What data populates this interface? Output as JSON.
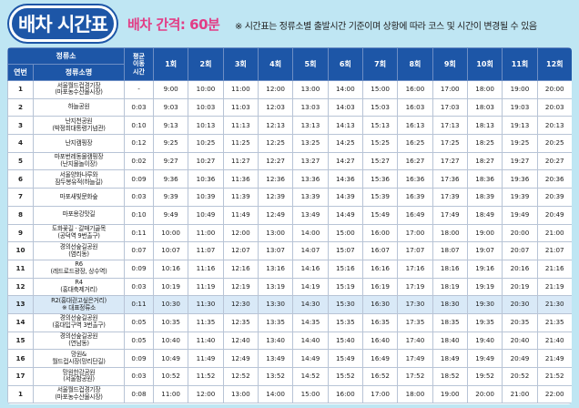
{
  "header": {
    "title": "배차 시간표",
    "interval": "배차 간격: 60분",
    "note": "※ 시간표는 정류소별 출발시간 기준이며 상황에 따라 코스 및 시간이 변경될 수 있음"
  },
  "table": {
    "col_stop_group": "정류소",
    "col_no": "연번",
    "col_stop_name": "정류소명",
    "col_interval": "평균\n이동\n시간",
    "runs": [
      "1회",
      "2회",
      "3회",
      "4회",
      "5회",
      "6회",
      "7회",
      "8회",
      "9회",
      "10회",
      "11회",
      "12회"
    ],
    "rows": [
      {
        "no": "1",
        "stop": "서울월드컵경기장\n(마포농수산물시장)",
        "iv": "-",
        "times": [
          "9:00",
          "10:00",
          "11:00",
          "12:00",
          "13:00",
          "14:00",
          "15:00",
          "16:00",
          "17:00",
          "18:00",
          "19:00",
          "20:00"
        ]
      },
      {
        "no": "2",
        "stop": "하늘공원",
        "iv": "0:03",
        "times": [
          "9:03",
          "10:03",
          "11:03",
          "12:03",
          "13:03",
          "14:03",
          "15:03",
          "16:03",
          "17:03",
          "18:03",
          "19:03",
          "20:03"
        ]
      },
      {
        "no": "3",
        "stop": "난지천공원\n(박정희대통령기념관)",
        "iv": "0:10",
        "times": [
          "9:13",
          "10:13",
          "11:13",
          "12:13",
          "13:13",
          "14:13",
          "15:13",
          "16:13",
          "17:13",
          "18:13",
          "19:13",
          "20:13"
        ]
      },
      {
        "no": "4",
        "stop": "난지캠핑장",
        "iv": "0:12",
        "times": [
          "9:25",
          "10:25",
          "11:25",
          "12:25",
          "13:25",
          "14:25",
          "15:25",
          "16:25",
          "17:25",
          "18:25",
          "19:25",
          "20:25"
        ]
      },
      {
        "no": "5",
        "stop": "마포번레동물캠핑장\n(난지물놀이장)",
        "iv": "0:02",
        "times": [
          "9:27",
          "10:27",
          "11:27",
          "12:27",
          "13:27",
          "14:27",
          "15:27",
          "16:27",
          "17:27",
          "18:27",
          "19:27",
          "20:27"
        ]
      },
      {
        "no": "6",
        "stop": "서울양화나루와\n잠두봉유적(하늘길)",
        "iv": "0:09",
        "times": [
          "9:36",
          "10:36",
          "11:36",
          "12:36",
          "13:36",
          "14:36",
          "15:36",
          "16:36",
          "17:36",
          "18:36",
          "19:36",
          "20:36"
        ]
      },
      {
        "no": "7",
        "stop": "마포새빛문화숲",
        "iv": "0:03",
        "times": [
          "9:39",
          "10:39",
          "11:39",
          "12:39",
          "13:39",
          "14:39",
          "15:39",
          "16:39",
          "17:39",
          "18:39",
          "19:39",
          "20:39"
        ]
      },
      {
        "no": "8",
        "stop": "마포용강맛길",
        "iv": "0:10",
        "times": [
          "9:49",
          "10:49",
          "11:49",
          "12:49",
          "13:49",
          "14:49",
          "15:49",
          "16:49",
          "17:49",
          "18:49",
          "19:49",
          "20:49"
        ]
      },
      {
        "no": "9",
        "stop": "도화꽃길 · 갈매기골목\n(공덕역 9번출구)",
        "iv": "0:11",
        "times": [
          "10:00",
          "11:00",
          "12:00",
          "13:00",
          "14:00",
          "15:00",
          "16:00",
          "17:00",
          "18:00",
          "19:00",
          "20:00",
          "21:00"
        ]
      },
      {
        "no": "10",
        "stop": "경의선숲길공원\n(염리동)",
        "iv": "0:07",
        "times": [
          "10:07",
          "11:07",
          "12:07",
          "13:07",
          "14:07",
          "15:07",
          "16:07",
          "17:07",
          "18:07",
          "19:07",
          "20:07",
          "21:07"
        ]
      },
      {
        "no": "11",
        "stop": "R6\n(레드로드광장, 상수역)",
        "iv": "0:09",
        "times": [
          "10:16",
          "11:16",
          "12:16",
          "13:16",
          "14:16",
          "15:16",
          "16:16",
          "17:16",
          "18:16",
          "19:16",
          "20:16",
          "21:16"
        ]
      },
      {
        "no": "12",
        "stop": "R4\n(홍대축제거리)",
        "iv": "0:03",
        "times": [
          "10:19",
          "11:19",
          "12:19",
          "13:19",
          "14:19",
          "15:19",
          "16:19",
          "17:19",
          "18:19",
          "19:19",
          "20:19",
          "21:19"
        ]
      },
      {
        "no": "13",
        "stop": "R2(홍대걷고싶은거리)\n※ 대표정류소",
        "iv": "0:11",
        "times": [
          "10:30",
          "11:30",
          "12:30",
          "13:30",
          "14:30",
          "15:30",
          "16:30",
          "17:30",
          "18:30",
          "19:30",
          "20:30",
          "21:30"
        ]
      },
      {
        "no": "14",
        "stop": "경의선숲길공원\n(홍대입구역 3번출구)",
        "iv": "0:05",
        "times": [
          "10:35",
          "11:35",
          "12:35",
          "13:35",
          "14:35",
          "15:35",
          "16:35",
          "17:35",
          "18:35",
          "19:35",
          "20:35",
          "21:35"
        ]
      },
      {
        "no": "15",
        "stop": "경의선숲길공원\n(연남동)",
        "iv": "0:05",
        "times": [
          "10:40",
          "11:40",
          "12:40",
          "13:40",
          "14:40",
          "15:40",
          "16:40",
          "17:40",
          "18:40",
          "19:40",
          "20:40",
          "21:40"
        ]
      },
      {
        "no": "16",
        "stop": "망원&\n월드컵시장(망리단길)",
        "iv": "0:09",
        "times": [
          "10:49",
          "11:49",
          "12:49",
          "13:49",
          "14:49",
          "15:49",
          "16:49",
          "17:49",
          "18:49",
          "19:49",
          "20:49",
          "21:49"
        ]
      },
      {
        "no": "17",
        "stop": "망원한강공원\n(서울함공원)",
        "iv": "0:03",
        "times": [
          "10:52",
          "11:52",
          "12:52",
          "13:52",
          "14:52",
          "15:52",
          "16:52",
          "17:52",
          "18:52",
          "19:52",
          "20:52",
          "21:52"
        ]
      },
      {
        "no": "1",
        "stop": "서울월드컵경기장\n(마포농수산물시장)",
        "iv": "0:08",
        "times": [
          "11:00",
          "12:00",
          "13:00",
          "14:00",
          "15:00",
          "16:00",
          "17:00",
          "18:00",
          "19:00",
          "20:00",
          "21:00",
          "22:00"
        ]
      }
    ]
  },
  "colors": {
    "header_blue": "#1d56a7",
    "accent_pink": "#e23d86",
    "background": "#bfe6f3",
    "highlight_row": "#d9e9f7"
  }
}
